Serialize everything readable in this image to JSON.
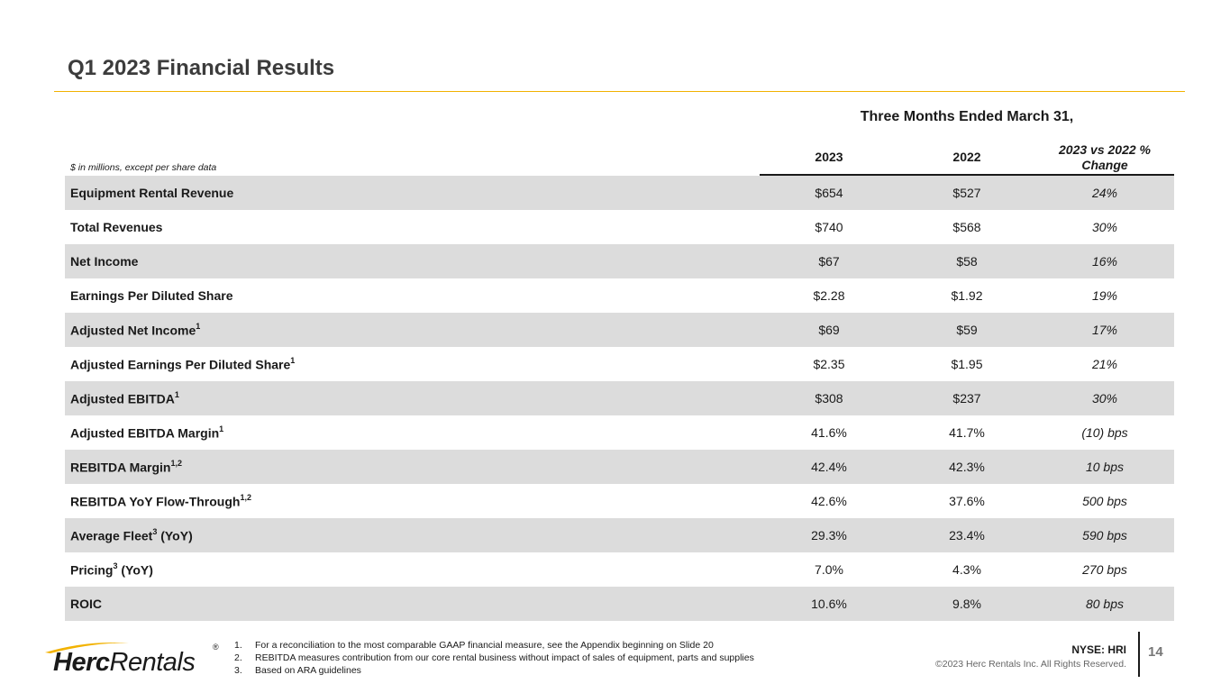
{
  "title": "Q1 2023 Financial Results",
  "table": {
    "group_header": "Three Months Ended March 31,",
    "units_note": "$ in millions, except per share data",
    "columns": {
      "y2023": "2023",
      "y2022": "2022",
      "change": "2023 vs 2022 % Change"
    },
    "rows": [
      {
        "label": "Equipment Rental Revenue",
        "sup": "",
        "v2023": "$654",
        "v2022": "$527",
        "change": "24%"
      },
      {
        "label": "Total Revenues",
        "sup": "",
        "v2023": "$740",
        "v2022": "$568",
        "change": "30%"
      },
      {
        "label": "Net Income",
        "sup": "",
        "v2023": "$67",
        "v2022": "$58",
        "change": "16%"
      },
      {
        "label": "Earnings Per Diluted Share",
        "sup": "",
        "v2023": "$2.28",
        "v2022": "$1.92",
        "change": "19%"
      },
      {
        "label": "Adjusted Net Income",
        "sup": "1",
        "v2023": "$69",
        "v2022": "$59",
        "change": "17%"
      },
      {
        "label": "Adjusted Earnings Per Diluted Share",
        "sup": "1",
        "v2023": "$2.35",
        "v2022": "$1.95",
        "change": "21%"
      },
      {
        "label": "Adjusted EBITDA",
        "sup": "1",
        "v2023": "$308",
        "v2022": "$237",
        "change": "30%"
      },
      {
        "label": "Adjusted EBITDA Margin",
        "sup": "1",
        "v2023": "41.6%",
        "v2022": "41.7%",
        "change": "(10) bps"
      },
      {
        "label": "REBITDA Margin",
        "sup": "1,2",
        "v2023": "42.4%",
        "v2022": "42.3%",
        "change": "10 bps"
      },
      {
        "label": "REBITDA YoY Flow-Through",
        "sup": "1,2",
        "v2023": "42.6%",
        "v2022": "37.6%",
        "change": "500 bps"
      },
      {
        "label": "Average Fleet",
        "sup": "3",
        "suffix": " (YoY)",
        "v2023": "29.3%",
        "v2022": "23.4%",
        "change": "590 bps"
      },
      {
        "label": "Pricing",
        "sup": "3",
        "suffix": " (YoY)",
        "v2023": "7.0%",
        "v2022": "4.3%",
        "change": "270 bps"
      },
      {
        "label": "ROIC",
        "sup": "",
        "v2023": "10.6%",
        "v2022": "9.8%",
        "change": "80 bps"
      }
    ]
  },
  "footnotes": [
    {
      "num": "1.",
      "text": "For a reconciliation to the most comparable GAAP financial measure, see the Appendix beginning on Slide 20"
    },
    {
      "num": "2.",
      "text": "REBITDA measures contribution from our core rental business without impact of sales of equipment, parts and supplies"
    },
    {
      "num": "3.",
      "text": "Based on ARA guidelines"
    }
  ],
  "logo": {
    "part1": "Herc",
    "part2": "Rentals",
    "reg": "®"
  },
  "ticker": "NYSE: HRI",
  "copyright": "©2023 Herc Rentals Inc.  All Rights Reserved.",
  "page_number": "14",
  "colors": {
    "accent": "#f2b200",
    "row_shade": "#dcdcdc"
  }
}
